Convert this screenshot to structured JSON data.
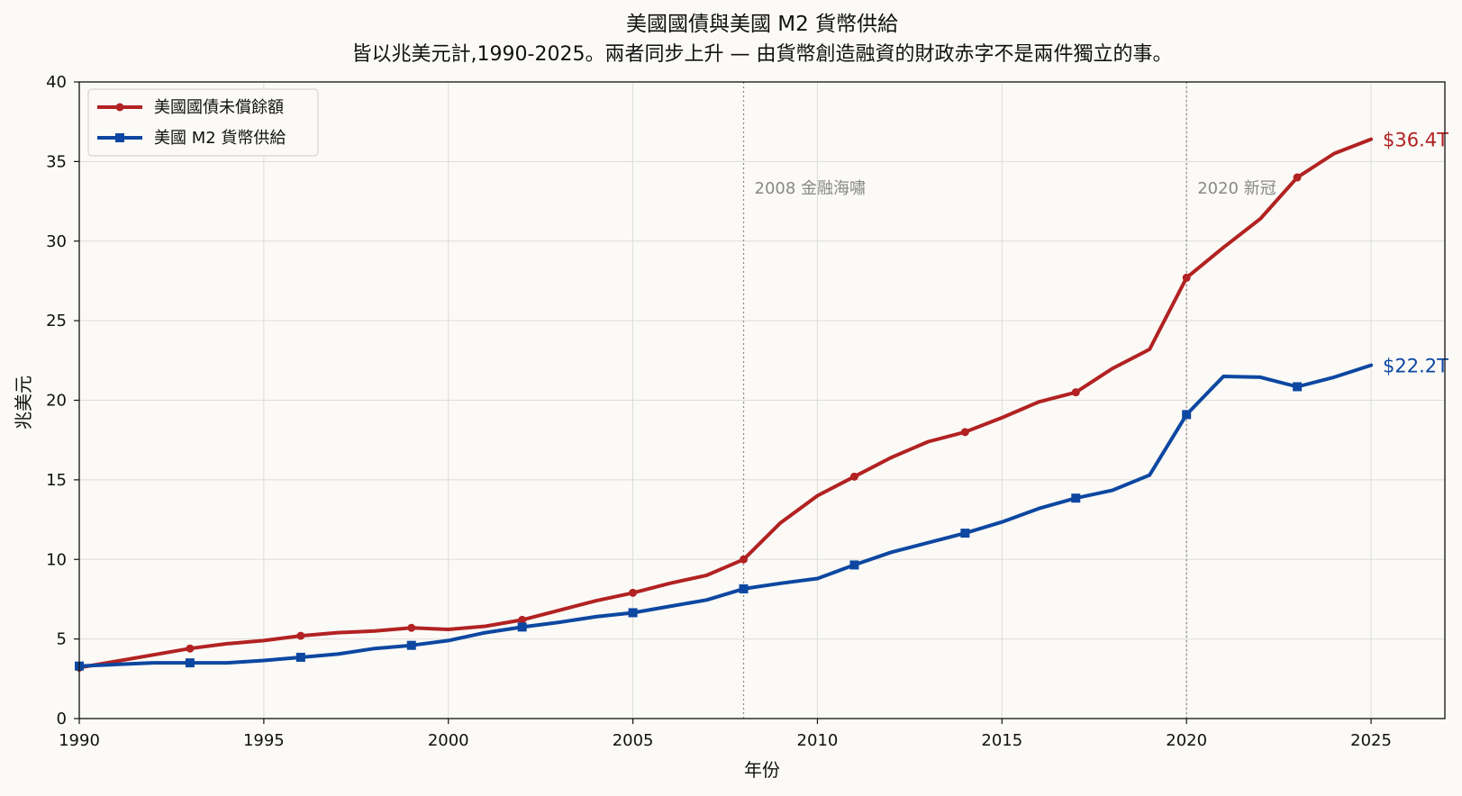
{
  "chart_data": {
    "type": "line",
    "title": "美國國債與美國 M2 貨幣供給",
    "subtitle": "皆以兆美元計,1990-2025。兩者同步上升 — 由貨幣創造融資的財政赤字不是兩件獨立的事。",
    "xlabel": "年份",
    "ylabel": "兆美元",
    "xlim": [
      1990,
      2027
    ],
    "ylim": [
      0,
      40
    ],
    "x_ticks": [
      1990,
      1995,
      2000,
      2005,
      2010,
      2015,
      2020,
      2025
    ],
    "y_ticks": [
      0,
      5,
      10,
      15,
      20,
      25,
      30,
      35,
      40
    ],
    "grid": true,
    "legend_position": "top-left",
    "series": [
      {
        "name": "美國國債未償餘額",
        "color": "#b22222",
        "marker": "circle",
        "end_label": "$36.4T",
        "x": [
          1990,
          1991,
          1992,
          1993,
          1994,
          1995,
          1996,
          1997,
          1998,
          1999,
          2000,
          2001,
          2002,
          2003,
          2004,
          2005,
          2006,
          2007,
          2008,
          2009,
          2010,
          2011,
          2012,
          2013,
          2014,
          2015,
          2016,
          2017,
          2018,
          2019,
          2020,
          2021,
          2022,
          2023,
          2024,
          2025
        ],
        "values": [
          3.2,
          3.6,
          4.0,
          4.4,
          4.7,
          4.9,
          5.2,
          5.4,
          5.5,
          5.7,
          5.6,
          5.8,
          6.2,
          6.8,
          7.4,
          7.9,
          8.5,
          9.0,
          10.0,
          12.3,
          14.0,
          15.2,
          16.4,
          17.4,
          18.0,
          18.9,
          19.9,
          20.5,
          22.0,
          23.2,
          27.7,
          29.6,
          31.4,
          34.0,
          35.5,
          36.4
        ]
      },
      {
        "name": "美國 M2 貨幣供給",
        "color": "#0d47a1",
        "marker": "square",
        "end_label": "$22.2T",
        "x": [
          1990,
          1991,
          1992,
          1993,
          1994,
          1995,
          1996,
          1997,
          1998,
          1999,
          2000,
          2001,
          2002,
          2003,
          2004,
          2005,
          2006,
          2007,
          2008,
          2009,
          2010,
          2011,
          2012,
          2013,
          2014,
          2015,
          2016,
          2017,
          2018,
          2019,
          2020,
          2021,
          2022,
          2023,
          2024,
          2025
        ],
        "values": [
          3.3,
          3.4,
          3.5,
          3.5,
          3.5,
          3.65,
          3.85,
          4.05,
          4.4,
          4.6,
          4.9,
          5.4,
          5.75,
          6.05,
          6.4,
          6.65,
          7.05,
          7.45,
          8.15,
          8.5,
          8.8,
          9.65,
          10.45,
          11.05,
          11.65,
          12.35,
          13.2,
          13.85,
          14.35,
          15.3,
          19.1,
          21.5,
          21.45,
          20.85,
          21.45,
          22.2
        ]
      }
    ],
    "annotations": [
      {
        "x": 2008,
        "label": "2008 金融海嘯"
      },
      {
        "x": 2020,
        "label": "2020 新冠"
      }
    ]
  }
}
